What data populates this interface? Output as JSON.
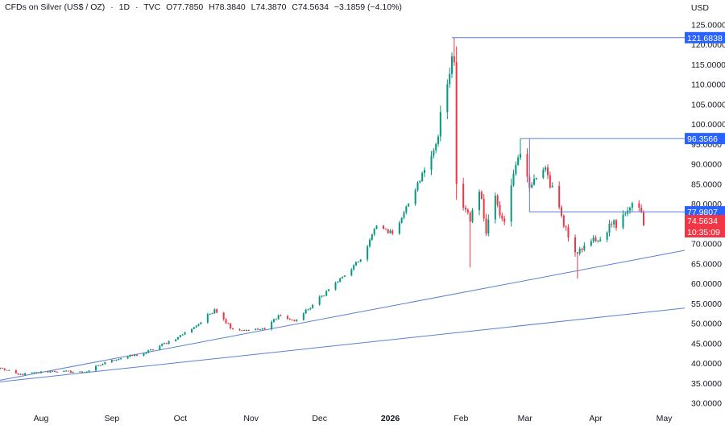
{
  "header": {
    "symbol": "CFDs on Silver (US$ / OZ)",
    "sep1": "·",
    "interval": "1D",
    "sep2": "·",
    "source": "TVC",
    "open": "O77.7850",
    "high": "H78.3840",
    "low": "L74.3870",
    "close": "C74.5634",
    "change": "−3.1859 (−4.10%)"
  },
  "currency": "USD",
  "colors": {
    "up": "#089981",
    "down": "#f23645",
    "line": "#2962ff",
    "trend": "#5b7fd1",
    "level_tag": "#2962ff",
    "last_tag": "#f23645"
  },
  "chart_data": {
    "type": "candlestick",
    "title": "CFDs on Silver (US$ / OZ)",
    "interval": "1D",
    "y_axis": {
      "label": "USD",
      "range": [
        28.5,
        127.5
      ],
      "ticks": [
        "125.0000",
        "120.0000",
        "115.0000",
        "110.0000",
        "105.0000",
        "100.0000",
        "95.0000",
        "90.0000",
        "85.0000",
        "80.0000",
        "75.0000",
        "70.0000",
        "65.0000",
        "60.0000",
        "55.0000",
        "50.0000",
        "45.0000",
        "40.0000",
        "35.0000",
        "30.0000"
      ]
    },
    "x_axis": {
      "range": [
        "2025-07-14",
        "2026-05-10"
      ],
      "ticks": [
        {
          "label": "Aug",
          "date": "2025-08-01"
        },
        {
          "label": "Sep",
          "date": "2025-09-01"
        },
        {
          "label": "Oct",
          "date": "2025-10-01"
        },
        {
          "label": "Nov",
          "date": "2025-11-01"
        },
        {
          "label": "Dec",
          "date": "2025-12-01"
        },
        {
          "label": "2026",
          "date": "2026-01-01",
          "bold": true
        },
        {
          "label": "Feb",
          "date": "2026-02-01"
        },
        {
          "label": "Mar",
          "date": "2026-03-01"
        },
        {
          "label": "Apr",
          "date": "2026-04-01"
        },
        {
          "label": "May",
          "date": "2026-05-01"
        }
      ]
    },
    "price_tags": [
      {
        "value": "121.6838",
        "price": 121.6838,
        "kind": "level"
      },
      {
        "value": "96.3566",
        "price": 96.3566,
        "kind": "level"
      },
      {
        "value": "77.9807",
        "price": 77.9807,
        "kind": "level"
      },
      {
        "value": "74.5634",
        "price": 74.5634,
        "kind": "last"
      },
      {
        "value": "10:35:09",
        "price": 74.5634,
        "kind": "countdown"
      }
    ],
    "horizontal_lines": [
      {
        "from": "2026-01-28",
        "price": 121.6838
      },
      {
        "from": "2026-02-27",
        "price": 96.3566
      },
      {
        "from": "2026-03-03",
        "price": 78.0,
        "to_price": 96.3566
      },
      {
        "from": "2026-03-03",
        "price": 77.9807
      }
    ],
    "trendlines": [
      {
        "from": [
          "2025-07-14",
          35.7
        ],
        "to": [
          "2026-05-10",
          68.3
        ]
      },
      {
        "from": [
          "2025-07-14",
          35.3
        ],
        "to": [
          "2026-05-10",
          53.8
        ]
      }
    ],
    "anchors": [
      [
        "2025-07-14",
        38.8
      ],
      [
        "2025-07-22",
        37.1
      ],
      [
        "2025-08-06",
        38.0
      ],
      [
        "2025-08-20",
        37.7
      ],
      [
        "2025-09-01",
        40.8
      ],
      [
        "2025-09-15",
        42.4
      ],
      [
        "2025-09-30",
        46.5
      ],
      [
        "2025-10-10",
        50.2
      ],
      [
        "2025-10-16",
        53.5
      ],
      [
        "2025-10-20",
        51.0
      ],
      [
        "2025-10-24",
        48.5
      ],
      [
        "2025-10-31",
        48.3
      ],
      [
        "2025-11-07",
        48.5
      ],
      [
        "2025-11-13",
        52.0
      ],
      [
        "2025-11-20",
        50.5
      ],
      [
        "2025-11-26",
        53.5
      ],
      [
        "2025-12-05",
        58.5
      ],
      [
        "2025-12-12",
        62.0
      ],
      [
        "2025-12-19",
        66.0
      ],
      [
        "2025-12-26",
        74.5
      ],
      [
        "2026-01-02",
        72.5
      ],
      [
        "2026-01-09",
        80.0
      ],
      [
        "2026-01-16",
        88.5
      ],
      [
        "2026-01-21",
        95.0
      ],
      [
        "2026-01-23",
        103.0
      ],
      [
        "2026-01-26",
        110.0
      ],
      [
        "2026-01-28",
        117.0
      ],
      [
        "2026-01-29",
        115.5
      ],
      [
        "2026-01-30",
        85.0
      ],
      [
        "2026-02-02",
        79.0
      ],
      [
        "2026-02-05",
        75.5
      ],
      [
        "2026-02-09",
        83.0
      ],
      [
        "2026-02-12",
        72.5
      ],
      [
        "2026-02-16",
        82.0
      ],
      [
        "2026-02-20",
        75.5
      ],
      [
        "2026-02-24",
        87.5
      ],
      [
        "2026-02-27",
        92.5
      ],
      [
        "2026-03-03",
        84.0
      ],
      [
        "2026-03-06",
        86.5
      ],
      [
        "2026-03-09",
        88.5
      ],
      [
        "2026-03-13",
        84.5
      ],
      [
        "2026-03-17",
        77.0
      ],
      [
        "2026-03-21",
        70.0
      ],
      [
        "2026-03-24",
        67.5
      ],
      [
        "2026-03-27",
        69.5
      ],
      [
        "2026-03-31",
        71.5
      ],
      [
        "2026-04-03",
        71.0
      ],
      [
        "2026-04-07",
        75.0
      ],
      [
        "2026-04-10",
        74.0
      ],
      [
        "2026-04-14",
        77.5
      ],
      [
        "2026-04-16",
        79.0
      ],
      [
        "2026-04-20",
        79.0
      ],
      [
        "2026-04-21",
        77.8
      ],
      [
        "2026-04-22",
        74.5634
      ]
    ]
  }
}
